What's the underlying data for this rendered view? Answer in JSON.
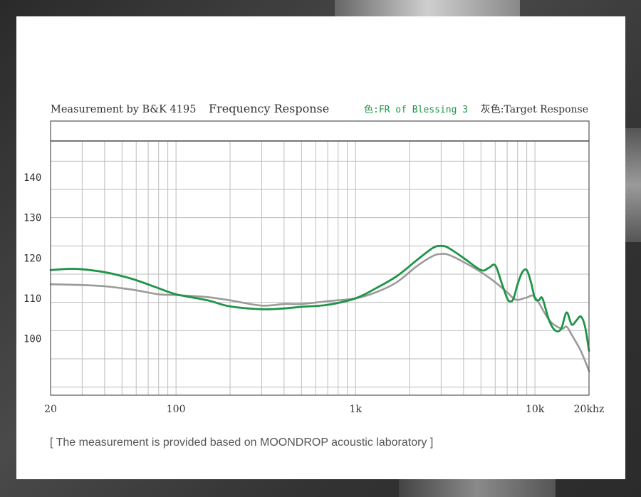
{
  "chart_data": {
    "type": "line",
    "header": {
      "left": "Measurement by B&K 4195",
      "title": "Frequency Response",
      "legend_green": "色:FR of Blessing 3",
      "legend_gray": "灰色:Target Response"
    },
    "x_scale": "log",
    "xlim": [
      20,
      20000
    ],
    "ylim": [
      86,
      149
    ],
    "grid": true,
    "x_tick_labels": [
      {
        "value": 20,
        "label": "20"
      },
      {
        "value": 100,
        "label": "100"
      },
      {
        "value": 1000,
        "label": "1k"
      },
      {
        "value": 10000,
        "label": "10k"
      },
      {
        "value": 20000,
        "label": "20khz"
      }
    ],
    "y_tick_labels": [
      {
        "value": 140,
        "label": "140"
      },
      {
        "value": 130,
        "label": "130"
      },
      {
        "value": 120,
        "label": "120"
      },
      {
        "value": 110,
        "label": "110"
      },
      {
        "value": 100,
        "label": "100"
      }
    ],
    "x_gridlines": [
      20,
      30,
      40,
      50,
      60,
      70,
      80,
      90,
      100,
      200,
      300,
      400,
      500,
      600,
      700,
      800,
      900,
      1000,
      2000,
      3000,
      4000,
      5000,
      6000,
      7000,
      8000,
      9000,
      10000,
      20000
    ],
    "y_gridlines": [
      149,
      144,
      137,
      130,
      123,
      116,
      109,
      102,
      95,
      88
    ],
    "series": [
      {
        "name": "Target Response",
        "color": "#9a9a9a",
        "x": [
          20,
          30,
          40,
          50,
          60,
          80,
          100,
          150,
          200,
          300,
          400,
          500,
          700,
          1000,
          1300,
          1700,
          2200,
          2700,
          3000,
          3300,
          4000,
          5000,
          6000,
          7000,
          7500,
          8000,
          9000,
          10000,
          12000,
          14000,
          15000,
          16000,
          17000,
          18000,
          19000,
          20000
        ],
        "y": [
          113.5,
          113.3,
          113,
          112.5,
          112,
          111,
          110.8,
          110.3,
          109.5,
          108.2,
          108.6,
          108.6,
          109.3,
          110,
          111.5,
          114,
          118,
          120.5,
          121,
          120.8,
          119,
          116.5,
          114,
          111.5,
          110.2,
          109.6,
          110.2,
          110.3,
          104.6,
          102.5,
          103,
          101,
          99,
          97,
          94.5,
          92
        ]
      },
      {
        "name": "FR of Blessing 3",
        "color": "#1e9448",
        "x": [
          20,
          25,
          30,
          40,
          50,
          60,
          80,
          100,
          150,
          200,
          300,
          400,
          500,
          700,
          1000,
          1300,
          1700,
          2200,
          2700,
          3000,
          3300,
          4000,
          5000,
          5500,
          6000,
          6500,
          7000,
          7300,
          7600,
          8000,
          8500,
          9000,
          9500,
          10000,
          10500,
          11000,
          12000,
          13000,
          14000,
          15000,
          16000,
          17000,
          18000,
          19000,
          20000
        ],
        "y": [
          117,
          117.3,
          117.2,
          116.5,
          115.5,
          114.5,
          112.5,
          111,
          109.5,
          108,
          107.3,
          107.5,
          107.9,
          108.4,
          110,
          112.5,
          115.5,
          119.5,
          122.5,
          123,
          122.5,
          120,
          117,
          117.5,
          118.2,
          114,
          110,
          109.2,
          110,
          113.5,
          116.5,
          117,
          114,
          110,
          109.5,
          110,
          104.5,
          102,
          102.5,
          106.5,
          103.5,
          104.5,
          105.5,
          103,
          97
        ]
      }
    ]
  },
  "footer": {
    "caption": "[ The measurement is provided based on MOONDROP acoustic laboratory ]"
  },
  "colors": {
    "background": "#3a3a3a",
    "panel": "#ffffff",
    "target": "#9a9a9a",
    "fr": "#1e9448",
    "grid": "#bdbdbd",
    "frame": "#555555"
  }
}
